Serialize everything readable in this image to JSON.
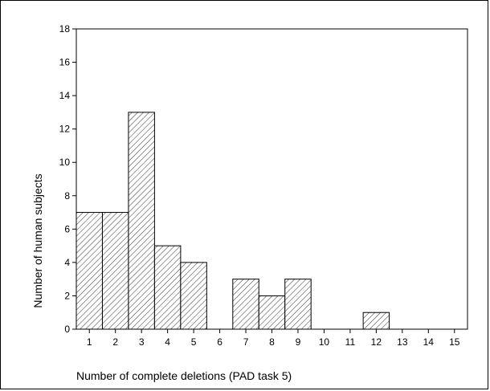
{
  "chart_data": {
    "type": "bar",
    "categories": [
      "1",
      "2",
      "3",
      "4",
      "5",
      "6",
      "7",
      "8",
      "9",
      "10",
      "11",
      "12",
      "13",
      "14",
      "15"
    ],
    "values": [
      7,
      7,
      13,
      5,
      4,
      0,
      3,
      2,
      3,
      0,
      0,
      1,
      0,
      0,
      0
    ],
    "yticks": [
      "0",
      "2",
      "4",
      "6",
      "8",
      "10",
      "12",
      "14",
      "16",
      "18"
    ],
    "ylim": [
      0,
      18
    ],
    "ylabel": "Number of human subjects",
    "xlabel": "Number of complete deletions (PAD task 5)",
    "grid": false,
    "bar_fill": "hatched",
    "colors": {
      "bar_stroke": "#000000",
      "hatch": "#000000",
      "background": "#ffffff"
    }
  }
}
